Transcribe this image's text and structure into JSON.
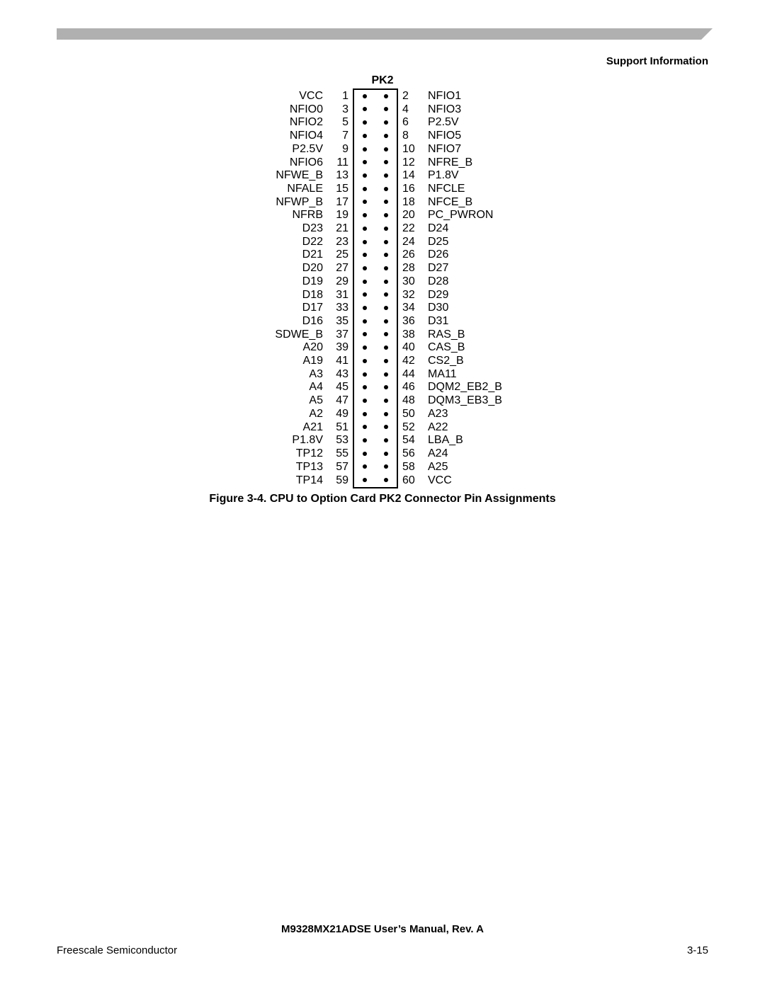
{
  "header": {
    "section": "Support Information"
  },
  "connector": {
    "title": "PK2",
    "pins": [
      {
        "left_label": "VCC",
        "left_num": 1,
        "right_num": 2,
        "right_label": "NFIO1"
      },
      {
        "left_label": "NFIO0",
        "left_num": 3,
        "right_num": 4,
        "right_label": "NFIO3"
      },
      {
        "left_label": "NFIO2",
        "left_num": 5,
        "right_num": 6,
        "right_label": "P2.5V"
      },
      {
        "left_label": "NFIO4",
        "left_num": 7,
        "right_num": 8,
        "right_label": "NFIO5"
      },
      {
        "left_label": "P2.5V",
        "left_num": 9,
        "right_num": 10,
        "right_label": "NFIO7"
      },
      {
        "left_label": "NFIO6",
        "left_num": 11,
        "right_num": 12,
        "right_label": "NFRE_B"
      },
      {
        "left_label": "NFWE_B",
        "left_num": 13,
        "right_num": 14,
        "right_label": "P1.8V"
      },
      {
        "left_label": "NFALE",
        "left_num": 15,
        "right_num": 16,
        "right_label": "NFCLE"
      },
      {
        "left_label": "NFWP_B",
        "left_num": 17,
        "right_num": 18,
        "right_label": "NFCE_B"
      },
      {
        "left_label": "NFRB",
        "left_num": 19,
        "right_num": 20,
        "right_label": "PC_PWRON"
      },
      {
        "left_label": "D23",
        "left_num": 21,
        "right_num": 22,
        "right_label": "D24"
      },
      {
        "left_label": "D22",
        "left_num": 23,
        "right_num": 24,
        "right_label": "D25"
      },
      {
        "left_label": "D21",
        "left_num": 25,
        "right_num": 26,
        "right_label": "D26"
      },
      {
        "left_label": "D20",
        "left_num": 27,
        "right_num": 28,
        "right_label": "D27"
      },
      {
        "left_label": "D19",
        "left_num": 29,
        "right_num": 30,
        "right_label": "D28"
      },
      {
        "left_label": "D18",
        "left_num": 31,
        "right_num": 32,
        "right_label": "D29"
      },
      {
        "left_label": "D17",
        "left_num": 33,
        "right_num": 34,
        "right_label": "D30"
      },
      {
        "left_label": "D16",
        "left_num": 35,
        "right_num": 36,
        "right_label": "D31"
      },
      {
        "left_label": "SDWE_B",
        "left_num": 37,
        "right_num": 38,
        "right_label": "RAS_B"
      },
      {
        "left_label": "A20",
        "left_num": 39,
        "right_num": 40,
        "right_label": "CAS_B"
      },
      {
        "left_label": "A19",
        "left_num": 41,
        "right_num": 42,
        "right_label": "CS2_B"
      },
      {
        "left_label": "A3",
        "left_num": 43,
        "right_num": 44,
        "right_label": "MA11"
      },
      {
        "left_label": "A4",
        "left_num": 45,
        "right_num": 46,
        "right_label": "DQM2_EB2_B"
      },
      {
        "left_label": "A5",
        "left_num": 47,
        "right_num": 48,
        "right_label": "DQM3_EB3_B"
      },
      {
        "left_label": "A2",
        "left_num": 49,
        "right_num": 50,
        "right_label": "A23"
      },
      {
        "left_label": "A21",
        "left_num": 51,
        "right_num": 52,
        "right_label": "A22"
      },
      {
        "left_label": "P1.8V",
        "left_num": 53,
        "right_num": 54,
        "right_label": "LBA_B"
      },
      {
        "left_label": "TP12",
        "left_num": 55,
        "right_num": 56,
        "right_label": "A24"
      },
      {
        "left_label": "TP13",
        "left_num": 57,
        "right_num": 58,
        "right_label": "A25"
      },
      {
        "left_label": "TP14",
        "left_num": 59,
        "right_num": 60,
        "right_label": "VCC"
      }
    ],
    "caption": "Figure 3-4. CPU to Option Card PK2 Connector Pin Assignments"
  },
  "footer": {
    "manual": "M9328MX21ADSE User’s Manual, Rev. A",
    "company": "Freescale Semiconductor",
    "page": "3-15"
  },
  "style": {
    "accent_color": "#b0b0b0",
    "text_color": "#000000",
    "background": "#ffffff",
    "font_family": "Arial, Helvetica, sans-serif"
  }
}
